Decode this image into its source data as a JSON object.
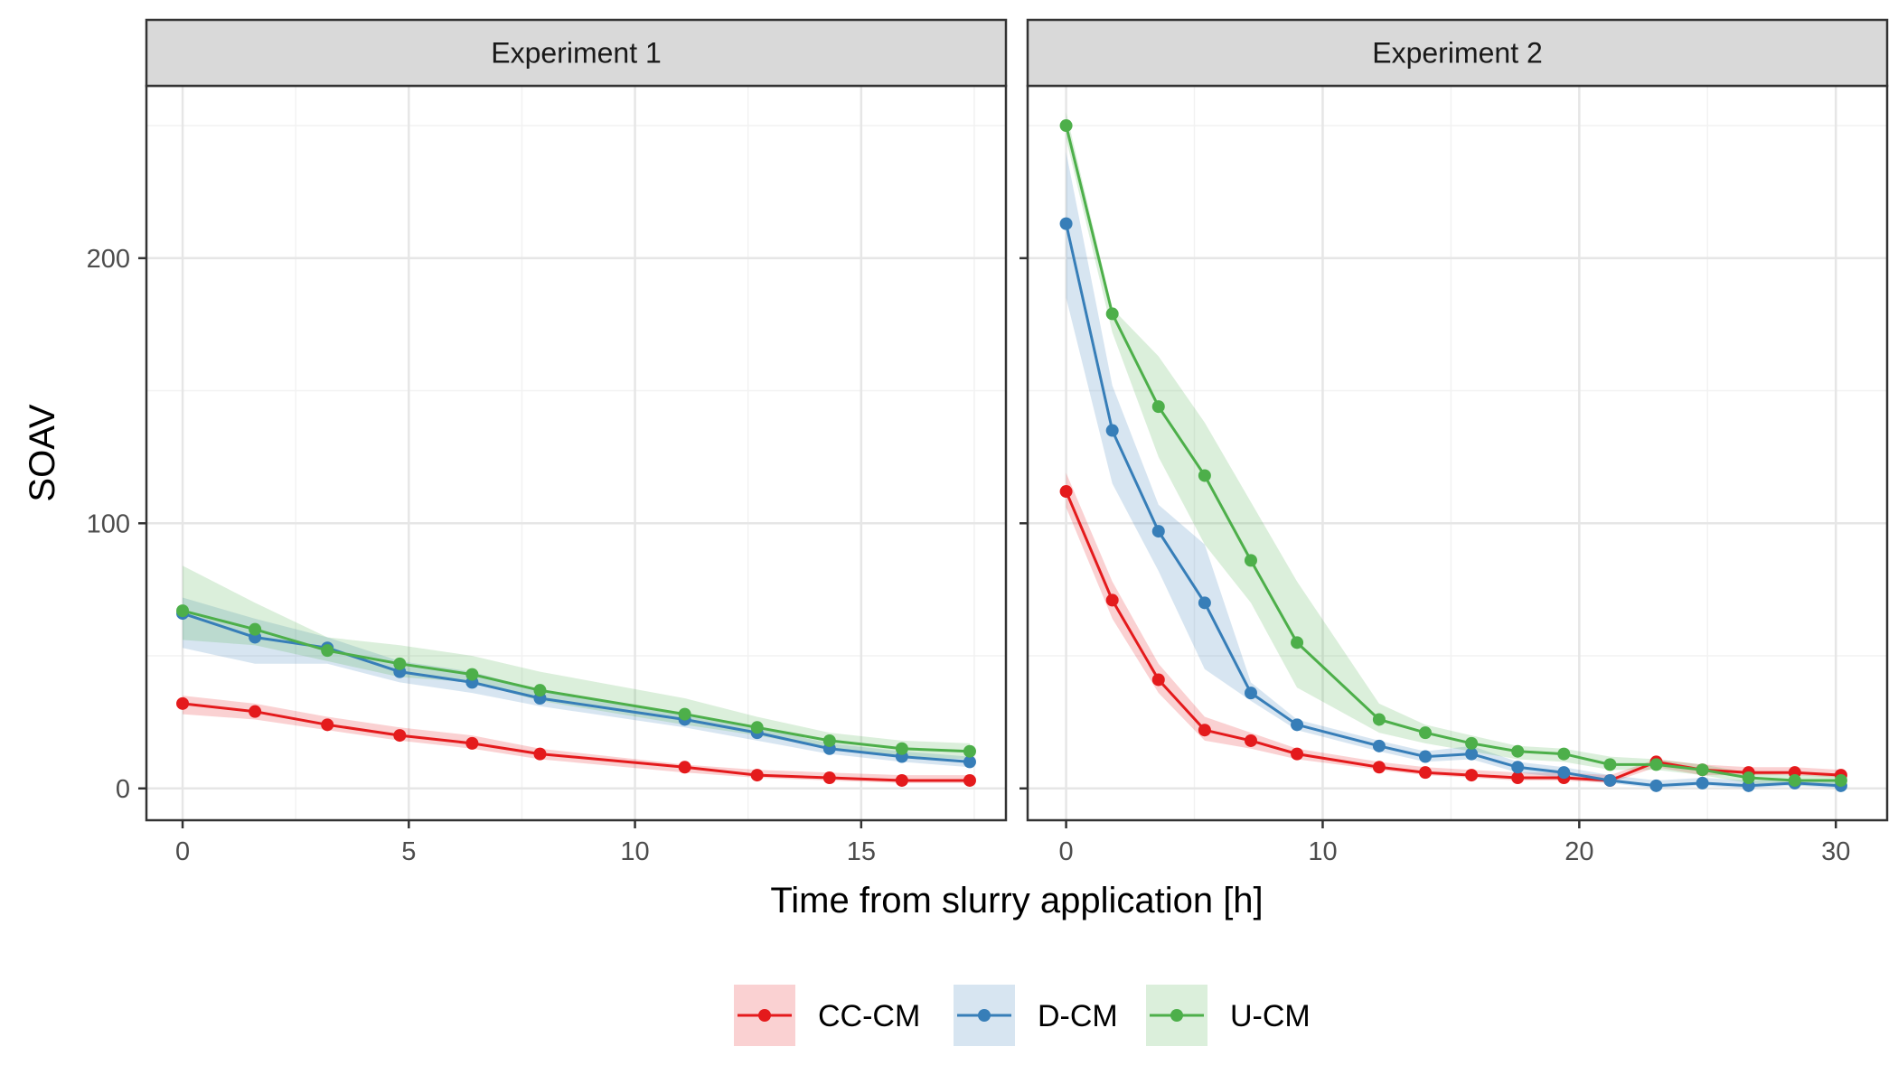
{
  "chart_data": {
    "type": "line",
    "facet_by": "experiment",
    "xlabel": "Time from slurry application [h]",
    "ylabel": "SOAV",
    "ylim": [
      -12,
      265
    ],
    "yticks": [
      0,
      100,
      200
    ],
    "y_minor": [
      50,
      150,
      250
    ],
    "legend_position": "bottom",
    "grid": true,
    "series_styles": [
      {
        "name": "CC-CM",
        "color": "#E41A1C"
      },
      {
        "name": "D-CM",
        "color": "#377EB8"
      },
      {
        "name": "U-CM",
        "color": "#4DAF4A"
      }
    ],
    "panels": [
      {
        "title": "Experiment 1",
        "xlim": [
          -0.8,
          18.2
        ],
        "xticks": [
          0,
          5,
          10,
          15
        ],
        "x_minor": [
          2.5,
          7.5,
          12.5,
          17.5
        ],
        "series": [
          {
            "name": "CC-CM",
            "x": [
              0,
              1.6,
              3.2,
              4.8,
              6.4,
              7.9,
              11.1,
              12.7,
              14.3,
              15.9,
              17.4
            ],
            "y": [
              32,
              29,
              24,
              20,
              17,
              13,
              8,
              5,
              4,
              3,
              3
            ],
            "lower": [
              28,
              26,
              22,
              18,
              15,
              11,
              6,
              4,
              3,
              2,
              2
            ],
            "upper": [
              35,
              32,
              27,
              23,
              20,
              15,
              9,
              7,
              6,
              5,
              5
            ]
          },
          {
            "name": "D-CM",
            "x": [
              0,
              1.6,
              3.2,
              4.8,
              6.4,
              7.9,
              11.1,
              12.7,
              14.3,
              15.9,
              17.4
            ],
            "y": [
              66,
              57,
              53,
              44,
              40,
              34,
              26,
              21,
              15,
              12,
              10
            ],
            "lower": [
              53,
              47,
              47,
              40,
              36,
              31,
              23,
              18,
              13,
              10,
              8
            ],
            "upper": [
              72,
              64,
              57,
              48,
              44,
              37,
              28,
              23,
              17,
              14,
              12
            ]
          },
          {
            "name": "U-CM",
            "x": [
              0,
              1.6,
              3.2,
              4.8,
              6.4,
              7.9,
              11.1,
              12.7,
              14.3,
              15.9,
              17.4
            ],
            "y": [
              67,
              60,
              52,
              47,
              43,
              37,
              28,
              23,
              18,
              15,
              14
            ],
            "lower": [
              56,
              54,
              48,
              42,
              40,
              33,
              24,
              20,
              15,
              12,
              11
            ],
            "upper": [
              84,
              70,
              57,
              54,
              50,
              44,
              34,
              27,
              21,
              18,
              17
            ]
          }
        ]
      },
      {
        "title": "Experiment 2",
        "xlim": [
          -1.5,
          32.0
        ],
        "xticks": [
          0,
          10,
          20,
          30
        ],
        "x_minor": [
          5,
          15,
          25
        ],
        "series": [
          {
            "name": "CC-CM",
            "x": [
              0,
              1.8,
              3.6,
              5.4,
              7.2,
              9.0,
              12.2,
              14.0,
              15.8,
              17.6,
              19.4,
              21.2,
              23.0,
              24.8,
              26.6,
              28.4,
              30.2
            ],
            "y": [
              112,
              71,
              41,
              22,
              18,
              13,
              8,
              6,
              5,
              4,
              4,
              3,
              10,
              7,
              6,
              6,
              5
            ],
            "lower": [
              106,
              64,
              36,
              18,
              15,
              11,
              7,
              5,
              4,
              3,
              3,
              2,
              8,
              5,
              5,
              5,
              4
            ],
            "upper": [
              119,
              78,
              47,
              27,
              21,
              15,
              10,
              8,
              7,
              6,
              6,
              5,
              11,
              9,
              8,
              8,
              7
            ]
          },
          {
            "name": "D-CM",
            "x": [
              0,
              1.8,
              3.6,
              5.4,
              7.2,
              9.0,
              12.2,
              14.0,
              15.8,
              17.6,
              19.4,
              21.2,
              23.0,
              24.8,
              26.6,
              28.4,
              30.2
            ],
            "y": [
              213,
              135,
              97,
              70,
              36,
              24,
              16,
              12,
              13,
              8,
              6,
              3,
              1,
              2,
              1,
              2,
              1
            ],
            "lower": [
              185,
              115,
              82,
              45,
              33,
              22,
              14,
              10,
              11,
              6,
              4,
              2,
              0,
              1,
              0,
              1,
              0
            ],
            "upper": [
              240,
              152,
              107,
              92,
              40,
              26,
              18,
              14,
              16,
              10,
              8,
              5,
              3,
              4,
              3,
              3,
              3
            ]
          },
          {
            "name": "U-CM",
            "x": [
              0,
              1.8,
              3.6,
              5.4,
              7.2,
              9.0,
              12.2,
              14.0,
              15.8,
              17.6,
              19.4,
              21.2,
              23.0,
              24.8,
              26.6,
              28.4,
              30.2
            ],
            "y": [
              250,
              179,
              144,
              118,
              86,
              55,
              26,
              21,
              17,
              14,
              13,
              9,
              9,
              7,
              4,
              3,
              3
            ],
            "lower": [
              245,
              172,
              125,
              92,
              70,
              38,
              21,
              17,
              14,
              11,
              10,
              7,
              7,
              5,
              2,
              1,
              1
            ],
            "upper": [
              255,
              181,
              163,
              138,
              108,
              78,
              32,
              24,
              20,
              16,
              15,
              12,
              11,
              9,
              6,
              5,
              5
            ]
          }
        ]
      }
    ]
  }
}
